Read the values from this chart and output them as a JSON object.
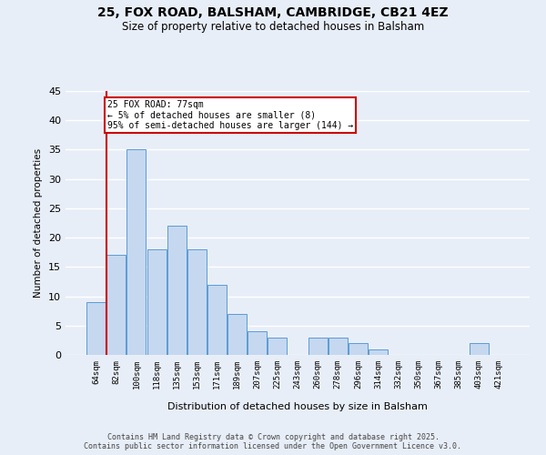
{
  "title1": "25, FOX ROAD, BALSHAM, CAMBRIDGE, CB21 4EZ",
  "title2": "Size of property relative to detached houses in Balsham",
  "xlabel": "Distribution of detached houses by size in Balsham",
  "ylabel": "Number of detached properties",
  "categories": [
    "64sqm",
    "82sqm",
    "100sqm",
    "118sqm",
    "135sqm",
    "153sqm",
    "171sqm",
    "189sqm",
    "207sqm",
    "225sqm",
    "243sqm",
    "260sqm",
    "278sqm",
    "296sqm",
    "314sqm",
    "332sqm",
    "350sqm",
    "367sqm",
    "385sqm",
    "403sqm",
    "421sqm"
  ],
  "values": [
    9,
    17,
    35,
    18,
    22,
    18,
    12,
    7,
    4,
    3,
    0,
    3,
    3,
    2,
    1,
    0,
    0,
    0,
    0,
    2,
    0
  ],
  "bar_color": "#c5d8f0",
  "bar_edge_color": "#5b9bd5",
  "annotation_box_text": "25 FOX ROAD: 77sqm\n← 5% of detached houses are smaller (8)\n95% of semi-detached houses are larger (144) →",
  "annotation_box_color": "#cc0000",
  "ylim": [
    0,
    45
  ],
  "yticks": [
    0,
    5,
    10,
    15,
    20,
    25,
    30,
    35,
    40,
    45
  ],
  "bg_color": "#e8eef8",
  "grid_color": "#ffffff",
  "fig_bg_color": "#e8eef8",
  "footer_line1": "Contains HM Land Registry data © Crown copyright and database right 2025.",
  "footer_line2": "Contains public sector information licensed under the Open Government Licence v3.0."
}
